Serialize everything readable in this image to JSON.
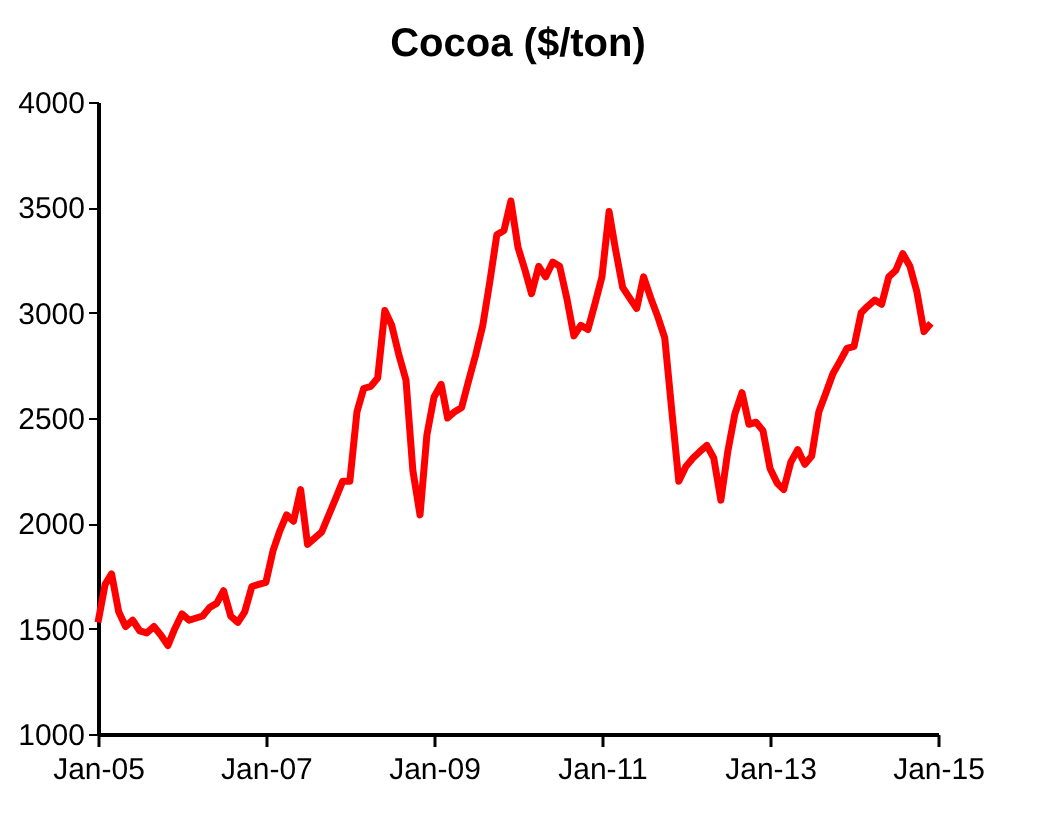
{
  "chart_data": {
    "type": "line",
    "title": "Cocoa ($/ton)",
    "x": [
      "2005-01",
      "2005-02",
      "2005-03",
      "2005-04",
      "2005-05",
      "2005-06",
      "2005-07",
      "2005-08",
      "2005-09",
      "2005-10",
      "2005-11",
      "2005-12",
      "2006-01",
      "2006-02",
      "2006-04",
      "2006-05",
      "2006-06",
      "2006-07",
      "2006-08",
      "2006-09",
      "2006-10",
      "2006-11",
      "2006-12",
      "2007-01",
      "2007-02",
      "2007-03",
      "2007-04",
      "2007-05",
      "2007-06",
      "2007-07",
      "2007-08",
      "2007-09",
      "2007-11",
      "2007-12",
      "2008-01",
      "2008-02",
      "2008-03",
      "2008-04",
      "2008-05",
      "2008-06",
      "2008-07",
      "2008-08",
      "2008-09",
      "2008-10",
      "2008-11",
      "2008-12",
      "2009-01",
      "2009-02",
      "2009-03",
      "2009-04",
      "2009-05",
      "2009-06",
      "2009-07",
      "2009-08",
      "2009-09",
      "2009-10",
      "2009-11",
      "2009-12",
      "2010-01",
      "2010-02",
      "2010-03",
      "2010-04",
      "2010-05",
      "2010-06",
      "2010-07",
      "2010-08",
      "2010-09",
      "2010-10",
      "2010-11",
      "2010-12",
      "2011-01",
      "2011-02",
      "2011-03",
      "2011-04",
      "2011-05",
      "2011-06",
      "2011-07",
      "2011-08",
      "2011-09",
      "2011-10",
      "2011-11",
      "2011-12",
      "2012-01",
      "2012-02",
      "2012-03",
      "2012-04",
      "2012-05",
      "2012-06",
      "2012-07",
      "2012-08",
      "2012-09",
      "2012-10",
      "2012-11",
      "2012-12",
      "2013-01",
      "2013-02",
      "2013-03",
      "2013-04",
      "2013-05",
      "2013-06",
      "2013-07",
      "2013-08",
      "2013-09",
      "2013-10",
      "2013-11",
      "2013-12",
      "2014-01",
      "2014-02",
      "2014-03",
      "2014-04",
      "2014-05",
      "2014-06",
      "2014-07",
      "2014-08",
      "2014-09",
      "2014-10",
      "2014-11",
      "2014-12"
    ],
    "series": [
      {
        "color": "#ff0000",
        "values": [
          1530,
          1710,
          1760,
          1580,
          1510,
          1540,
          1490,
          1480,
          1510,
          1470,
          1420,
          1500,
          1570,
          1540,
          1560,
          1600,
          1620,
          1680,
          1560,
          1530,
          1580,
          1700,
          1710,
          1720,
          1870,
          1960,
          2040,
          2010,
          2160,
          1900,
          1930,
          1960,
          2120,
          2200,
          2200,
          2530,
          2640,
          2650,
          2690,
          3010,
          2940,
          2800,
          2680,
          2250,
          2040,
          2420,
          2600,
          2660,
          2500,
          2530,
          2550,
          2680,
          2800,
          2940,
          3150,
          3370,
          3390,
          3530,
          3310,
          3200,
          3090,
          3220,
          3170,
          3240,
          3220,
          3070,
          2890,
          2940,
          2920,
          3040,
          3170,
          3480,
          3300,
          3120,
          3070,
          3020,
          3170,
          3070,
          2980,
          2880,
          2530,
          2200,
          2270,
          2310,
          2340,
          2370,
          2310,
          2110,
          2340,
          2520,
          2620,
          2470,
          2480,
          2440,
          2260,
          2190,
          2160,
          2290,
          2350,
          2280,
          2320,
          2530,
          2620,
          2710,
          2770,
          2830,
          2840,
          3000,
          3030,
          3060,
          3040,
          3170,
          3200,
          3280,
          3220,
          3100,
          2910,
          2950
        ]
      }
    ],
    "xlim": [
      "2005-01",
      "2015-01"
    ],
    "xticks": [
      {
        "value": "2005-01",
        "label": "Jan-05"
      },
      {
        "value": "2007-01",
        "label": "Jan-07"
      },
      {
        "value": "2009-01",
        "label": "Jan-09"
      },
      {
        "value": "2011-01",
        "label": "Jan-11"
      },
      {
        "value": "2013-01",
        "label": "Jan-13"
      },
      {
        "value": "2015-01",
        "label": "Jan-15"
      }
    ],
    "ylim": [
      1000,
      4000
    ],
    "yticks": [
      1000,
      1500,
      2000,
      2500,
      3000,
      3500,
      4000
    ],
    "grid": false,
    "legend": false,
    "line_style": "solid",
    "marker": "none"
  }
}
